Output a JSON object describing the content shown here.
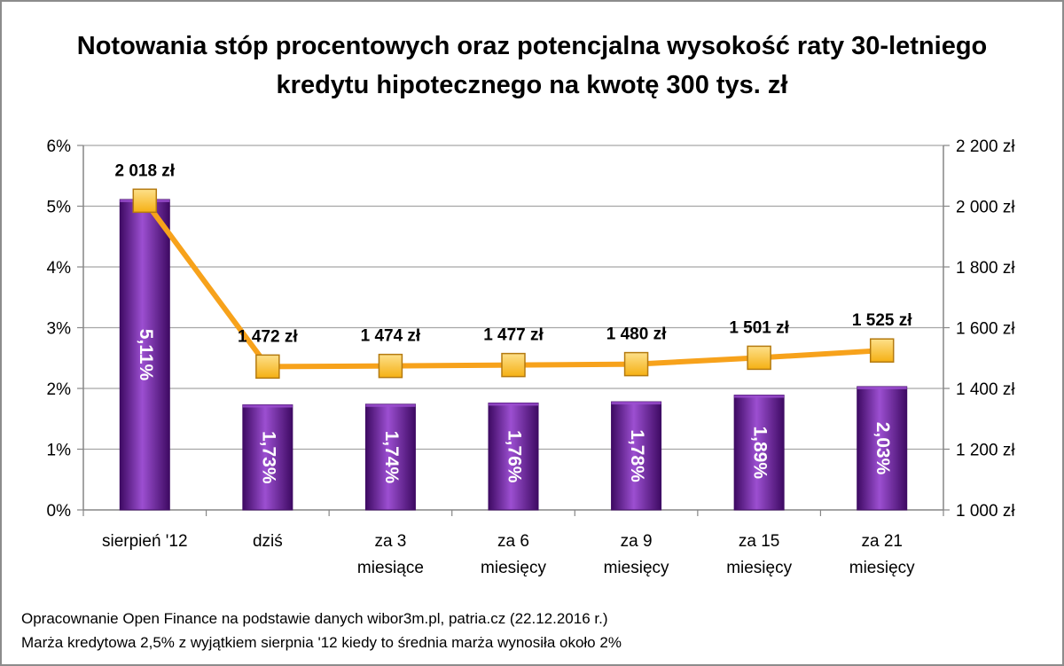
{
  "chart_data": {
    "type": "bar",
    "title_lines": [
      "Notowania stóp procentowych oraz potencjalna wysokość raty 30-letniego",
      "kredytu hipotecznego na kwotę 300 tys. zł"
    ],
    "categories": [
      [
        "sierpień '12"
      ],
      [
        "dziś"
      ],
      [
        "za 3",
        "miesiące"
      ],
      [
        "za 6",
        "miesięcy"
      ],
      [
        "za 9",
        "miesięcy"
      ],
      [
        "za 15",
        "miesięcy"
      ],
      [
        "za 21",
        "miesięcy"
      ]
    ],
    "series": [
      {
        "type": "bar",
        "axis": "left",
        "values": [
          5.11,
          1.73,
          1.74,
          1.76,
          1.78,
          1.89,
          2.03
        ],
        "labels": [
          "5,11%",
          "1,73%",
          "1,74%",
          "1,76%",
          "1,78%",
          "1,89%",
          "2,03%"
        ],
        "color": "#6a1b9a",
        "color_light": "#9c4fd1",
        "color_dark": "#3e0a63"
      },
      {
        "type": "line",
        "axis": "right",
        "values": [
          2018,
          1472,
          1474,
          1477,
          1480,
          1501,
          1525
        ],
        "labels": [
          "2 018 zł",
          "1 472 zł",
          "1 474 zł",
          "1 477 zł",
          "1 480 zł",
          "1 501 zł",
          "1 525 zł"
        ],
        "color": "#f7a21b",
        "marker_color": "#f9c033",
        "marker_border": "#b47a10"
      }
    ],
    "y_left": {
      "range": [
        0,
        6
      ],
      "ticks": [
        0,
        1,
        2,
        3,
        4,
        5,
        6
      ],
      "tick_labels": [
        "0%",
        "1%",
        "2%",
        "3%",
        "4%",
        "5%",
        "6%"
      ]
    },
    "y_right": {
      "range": [
        1000,
        2200
      ],
      "ticks": [
        1000,
        1200,
        1400,
        1600,
        1800,
        2000,
        2200
      ],
      "tick_labels": [
        "1 000 zł",
        "1 200 zł",
        "1 400 zł",
        "1 600 zł",
        "1 800 zł",
        "2 000 zł",
        "2 200 zł"
      ]
    },
    "grid": true,
    "gridline_color": "#a6a6a6",
    "footer_lines": [
      "Opracownanie Open Finance na podstawie danych wibor3m.pl, patria.cz  (22.12.2016 r.)",
      "Marża kredytowa 2,5% z wyjątkiem sierpnia '12 kiedy to średnia marża wynosiła około 2%"
    ]
  }
}
